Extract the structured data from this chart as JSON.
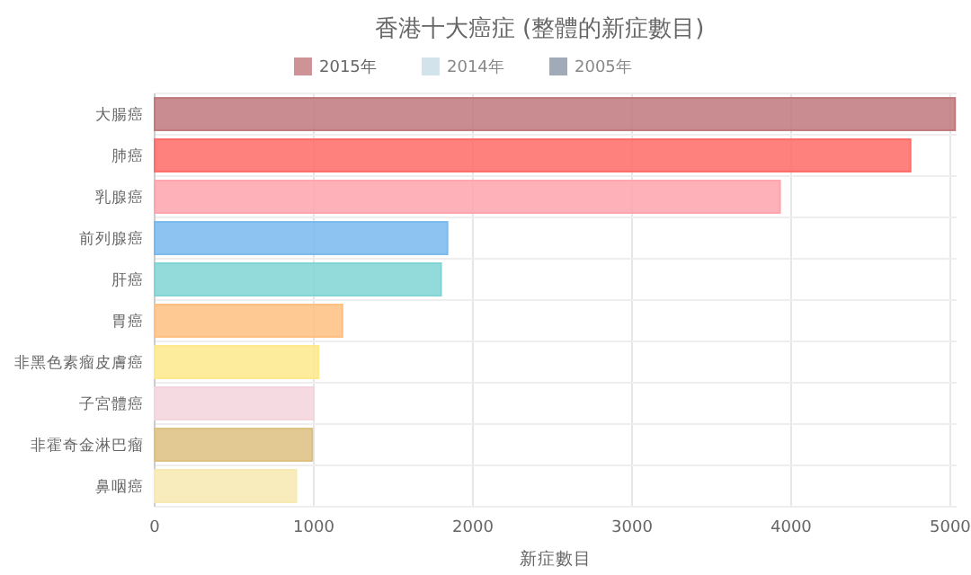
{
  "chart_data": {
    "type": "bar",
    "orientation": "horizontal",
    "title": "香港十大癌症 (整體的新症數目)",
    "xlabel": "新症數目",
    "categories": [
      "大腸癌",
      "肺癌",
      "乳腺癌",
      "前列腺癌",
      "肝癌",
      "胃癌",
      "非黑色素瘤皮膚癌",
      "子宮體癌",
      "非霍奇金淋巴瘤",
      "鼻咽癌"
    ],
    "series": [
      {
        "name": "2015年",
        "color": "#c0787c",
        "colors": [
          "#c0787c",
          "#ff6b66",
          "#ffa3ad",
          "#78b9ee",
          "#80d4d3",
          "#ffbf80",
          "#fde98a",
          "#f5d3dc",
          "#ddc080",
          "#f8e9b0"
        ],
        "values": [
          5030,
          4750,
          3930,
          1840,
          1800,
          1180,
          1030,
          1000,
          990,
          890
        ]
      },
      {
        "name": "2014年",
        "color": "#c8dce6",
        "values": [
          null,
          null,
          null,
          null,
          null,
          null,
          null,
          null,
          null,
          null
        ]
      },
      {
        "name": "2005年",
        "color": "#8a96a6",
        "values": [
          null,
          null,
          null,
          null,
          null,
          null,
          null,
          null,
          null,
          null
        ]
      }
    ],
    "xlim": [
      0,
      5040
    ],
    "xticks": [
      0,
      1000,
      2000,
      3000,
      4000,
      5000
    ],
    "grid": true,
    "legend": "top"
  }
}
